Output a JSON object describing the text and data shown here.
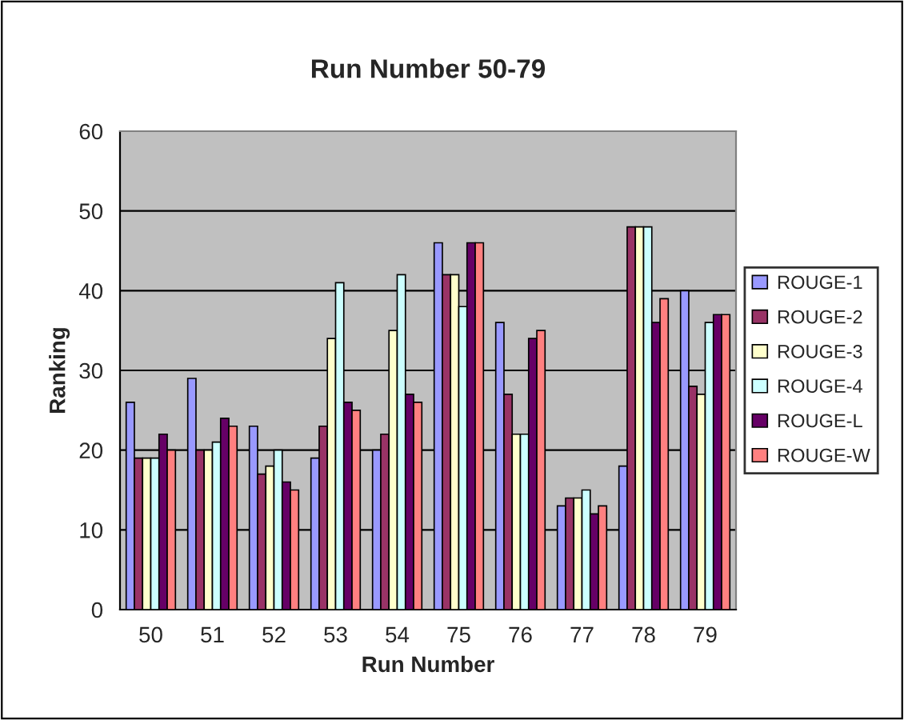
{
  "chart_data": {
    "type": "bar",
    "title": "Run Number 50-79",
    "xlabel": "Run Number",
    "ylabel": "Ranking",
    "categories": [
      "50",
      "51",
      "52",
      "53",
      "54",
      "75",
      "76",
      "77",
      "78",
      "79"
    ],
    "series": [
      {
        "name": "ROUGE-1",
        "color": "#9999ff",
        "values": [
          26,
          29,
          23,
          19,
          20,
          46,
          36,
          13,
          18,
          40
        ]
      },
      {
        "name": "ROUGE-2",
        "color": "#993366",
        "values": [
          19,
          20,
          17,
          23,
          22,
          42,
          27,
          14,
          48,
          28
        ]
      },
      {
        "name": "ROUGE-3",
        "color": "#ffffcc",
        "values": [
          19,
          20,
          18,
          34,
          35,
          42,
          22,
          14,
          48,
          27
        ]
      },
      {
        "name": "ROUGE-4",
        "color": "#ccffff",
        "values": [
          19,
          21,
          20,
          41,
          42,
          38,
          22,
          15,
          48,
          36
        ]
      },
      {
        "name": "ROUGE-L",
        "color": "#660066",
        "values": [
          22,
          24,
          16,
          26,
          27,
          46,
          34,
          12,
          36,
          37
        ]
      },
      {
        "name": "ROUGE-W",
        "color": "#ff8080",
        "values": [
          20,
          23,
          15,
          25,
          26,
          46,
          35,
          13,
          39,
          37
        ]
      }
    ],
    "ylim": [
      0,
      60
    ],
    "yticks": [
      0,
      10,
      20,
      30,
      40,
      50,
      60
    ],
    "grid": "y",
    "legend": "right"
  }
}
